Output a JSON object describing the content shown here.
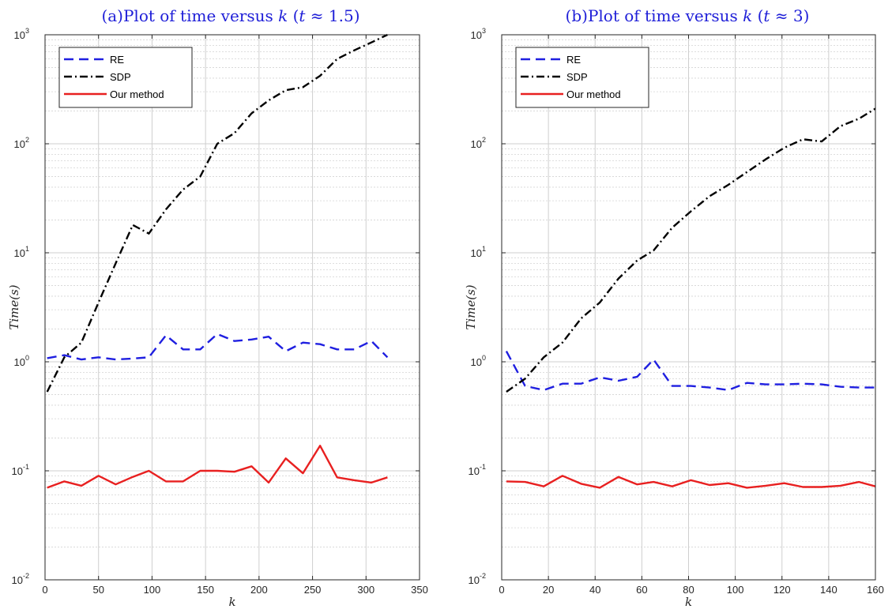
{
  "chart_data": [
    {
      "type": "line",
      "title": "(a)Plot of time versus k (t ≈ 1.5)",
      "title_parts": {
        "prefix": "(a)Plot of time versus ",
        "var": "k",
        "open": " (",
        "tvar": "t",
        "rest": " ≈ 1.5)"
      },
      "xlabel": "k",
      "ylabel": "Time(s)",
      "xlim": [
        0,
        350
      ],
      "ylim": [
        0.01,
        1000
      ],
      "yscale": "log",
      "xticks": [
        0,
        50,
        100,
        150,
        200,
        250,
        300,
        350
      ],
      "yticks": [
        {
          "base": "10",
          "exp": "-2"
        },
        {
          "base": "10",
          "exp": "-1"
        },
        {
          "base": "10",
          "exp": "0"
        },
        {
          "base": "10",
          "exp": "1"
        },
        {
          "base": "10",
          "exp": "2"
        },
        {
          "base": "10",
          "exp": "3"
        }
      ],
      "grid": true,
      "legend_position": "top-left",
      "series": [
        {
          "name": "RE",
          "color": "#1f1fe0",
          "dash": "dashed",
          "points": [
            [
              2,
              1.08
            ],
            [
              18,
              1.15
            ],
            [
              34,
              1.05
            ],
            [
              50,
              1.1
            ],
            [
              66,
              1.05
            ],
            [
              82,
              1.07
            ],
            [
              97,
              1.1
            ],
            [
              113,
              1.75
            ],
            [
              129,
              1.3
            ],
            [
              145,
              1.3
            ],
            [
              161,
              1.8
            ],
            [
              177,
              1.55
            ],
            [
              193,
              1.6
            ],
            [
              209,
              1.7
            ],
            [
              225,
              1.25
            ],
            [
              241,
              1.5
            ],
            [
              257,
              1.45
            ],
            [
              273,
              1.3
            ],
            [
              289,
              1.3
            ],
            [
              305,
              1.55
            ],
            [
              320,
              1.1
            ]
          ]
        },
        {
          "name": "SDP",
          "color": "#000000",
          "dash": "dashdot",
          "points": [
            [
              2,
              0.53
            ],
            [
              18,
              1.1
            ],
            [
              34,
              1.5
            ],
            [
              50,
              3.5
            ],
            [
              66,
              8
            ],
            [
              82,
              18
            ],
            [
              97,
              15
            ],
            [
              113,
              25
            ],
            [
              129,
              38
            ],
            [
              145,
              50
            ],
            [
              161,
              100
            ],
            [
              177,
              125
            ],
            [
              193,
              190
            ],
            [
              209,
              250
            ],
            [
              225,
              310
            ],
            [
              241,
              330
            ],
            [
              257,
              420
            ],
            [
              273,
              600
            ],
            [
              289,
              720
            ],
            [
              305,
              850
            ],
            [
              320,
              1000
            ]
          ]
        },
        {
          "name": "Our method",
          "color": "#e82020",
          "dash": "solid",
          "points": [
            [
              2,
              0.07
            ],
            [
              18,
              0.08
            ],
            [
              34,
              0.073
            ],
            [
              50,
              0.09
            ],
            [
              66,
              0.075
            ],
            [
              82,
              0.088
            ],
            [
              97,
              0.1
            ],
            [
              113,
              0.08
            ],
            [
              129,
              0.08
            ],
            [
              145,
              0.1
            ],
            [
              161,
              0.1
            ],
            [
              177,
              0.098
            ],
            [
              193,
              0.11
            ],
            [
              209,
              0.078
            ],
            [
              225,
              0.13
            ],
            [
              241,
              0.095
            ],
            [
              257,
              0.17
            ],
            [
              273,
              0.087
            ],
            [
              289,
              0.082
            ],
            [
              305,
              0.078
            ],
            [
              320,
              0.087
            ]
          ]
        }
      ]
    },
    {
      "type": "line",
      "title": "(b)Plot of time versus k (t ≈ 3)",
      "title_parts": {
        "prefix": "(b)Plot of time versus ",
        "var": "k",
        "open": " (",
        "tvar": "t",
        "rest": " ≈ 3)"
      },
      "xlabel": "k",
      "ylabel": "Time(s)",
      "xlim": [
        0,
        160
      ],
      "ylim": [
        0.01,
        1000
      ],
      "yscale": "log",
      "xticks": [
        0,
        20,
        40,
        60,
        80,
        100,
        120,
        140,
        160
      ],
      "yticks": [
        {
          "base": "10",
          "exp": "-2"
        },
        {
          "base": "10",
          "exp": "-1"
        },
        {
          "base": "10",
          "exp": "0"
        },
        {
          "base": "10",
          "exp": "1"
        },
        {
          "base": "10",
          "exp": "2"
        },
        {
          "base": "10",
          "exp": "3"
        }
      ],
      "grid": true,
      "legend_position": "top-left",
      "series": [
        {
          "name": "RE",
          "color": "#1f1fe0",
          "dash": "dashed",
          "points": [
            [
              2,
              1.25
            ],
            [
              10,
              0.6
            ],
            [
              18,
              0.55
            ],
            [
              26,
              0.63
            ],
            [
              34,
              0.63
            ],
            [
              42,
              0.72
            ],
            [
              50,
              0.67
            ],
            [
              58,
              0.73
            ],
            [
              65,
              1.05
            ],
            [
              73,
              0.6
            ],
            [
              81,
              0.6
            ],
            [
              89,
              0.58
            ],
            [
              97,
              0.55
            ],
            [
              105,
              0.64
            ],
            [
              113,
              0.62
            ],
            [
              121,
              0.62
            ],
            [
              129,
              0.63
            ],
            [
              137,
              0.62
            ],
            [
              145,
              0.59
            ],
            [
              153,
              0.58
            ],
            [
              160,
              0.58
            ]
          ]
        },
        {
          "name": "SDP",
          "color": "#000000",
          "dash": "dashdot",
          "points": [
            [
              2,
              0.53
            ],
            [
              10,
              0.7
            ],
            [
              18,
              1.1
            ],
            [
              26,
              1.5
            ],
            [
              34,
              2.5
            ],
            [
              42,
              3.5
            ],
            [
              50,
              5.8
            ],
            [
              58,
              8.5
            ],
            [
              65,
              10.5
            ],
            [
              73,
              17
            ],
            [
              81,
              24
            ],
            [
              89,
              33
            ],
            [
              97,
              42
            ],
            [
              105,
              55
            ],
            [
              113,
              72
            ],
            [
              121,
              92
            ],
            [
              129,
              110
            ],
            [
              137,
              105
            ],
            [
              145,
              145
            ],
            [
              153,
              170
            ],
            [
              160,
              210
            ]
          ]
        },
        {
          "name": "Our method",
          "color": "#e82020",
          "dash": "solid",
          "points": [
            [
              2,
              0.08
            ],
            [
              10,
              0.079
            ],
            [
              18,
              0.072
            ],
            [
              26,
              0.09
            ],
            [
              34,
              0.076
            ],
            [
              42,
              0.07
            ],
            [
              50,
              0.088
            ],
            [
              58,
              0.075
            ],
            [
              65,
              0.079
            ],
            [
              73,
              0.072
            ],
            [
              81,
              0.082
            ],
            [
              89,
              0.074
            ],
            [
              97,
              0.077
            ],
            [
              105,
              0.07
            ],
            [
              113,
              0.073
            ],
            [
              121,
              0.077
            ],
            [
              129,
              0.071
            ],
            [
              137,
              0.071
            ],
            [
              145,
              0.073
            ],
            [
              153,
              0.079
            ],
            [
              160,
              0.072
            ]
          ]
        }
      ]
    }
  ]
}
